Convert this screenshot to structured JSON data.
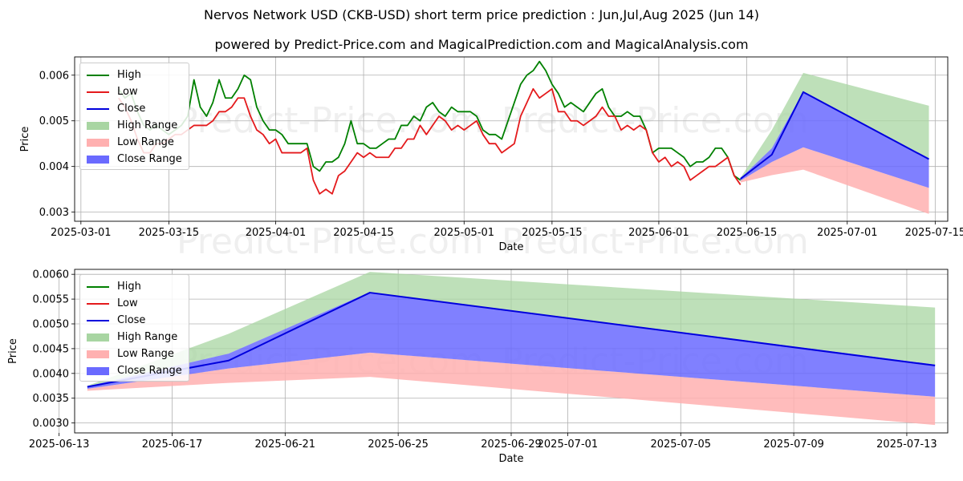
{
  "title": "Nervos Network USD (CKB-USD) short term price prediction : Jun,Jul,Aug 2025 (Jun 14)",
  "subtitle": "powered by Predict-Price.com and MagicalPrediction.com and MagicalAnalysis.com",
  "watermark": "Predict-Price.com",
  "colors": {
    "high": "#008000",
    "low": "#e41a1c",
    "close": "#0000dd",
    "high_range": "#a8d5a2",
    "low_range": "#ffb0b0",
    "close_range": "#6a6aff",
    "grid": "#b0b0b0"
  },
  "legend": [
    {
      "label": "High",
      "kind": "line",
      "color": "#008000"
    },
    {
      "label": "Low",
      "kind": "line",
      "color": "#e41a1c"
    },
    {
      "label": "Close",
      "kind": "line",
      "color": "#0000dd"
    },
    {
      "label": "High Range",
      "kind": "patch",
      "color": "#a8d5a2"
    },
    {
      "label": "Low Range",
      "kind": "patch",
      "color": "#ffb0b0"
    },
    {
      "label": "Close Range",
      "kind": "patch",
      "color": "#6a6aff"
    }
  ],
  "chart_data": [
    {
      "type": "line",
      "xlabel": "Date",
      "ylabel": "Price",
      "xlim": [
        "2025-02-28",
        "2025-07-17"
      ],
      "ylim": [
        0.0028,
        0.0064
      ],
      "xticks": [
        "2025-03-01",
        "2025-03-15",
        "2025-04-01",
        "2025-04-15",
        "2025-05-01",
        "2025-05-15",
        "2025-06-01",
        "2025-06-15",
        "2025-07-01",
        "2025-07-15"
      ],
      "yticks": [
        0.003,
        0.004,
        0.005,
        0.006
      ],
      "ytick_labels": [
        "0.003",
        "0.004",
        "0.005",
        "0.006"
      ],
      "grid": true,
      "legend_position": "upper left",
      "history": {
        "x": [
          "2025-03-07",
          "2025-03-08",
          "2025-03-09",
          "2025-03-10",
          "2025-03-11",
          "2025-03-12",
          "2025-03-13",
          "2025-03-14",
          "2025-03-15",
          "2025-03-16",
          "2025-03-17",
          "2025-03-18",
          "2025-03-19",
          "2025-03-20",
          "2025-03-21",
          "2025-03-22",
          "2025-03-23",
          "2025-03-24",
          "2025-03-25",
          "2025-03-26",
          "2025-03-27",
          "2025-03-28",
          "2025-03-29",
          "2025-03-30",
          "2025-03-31",
          "2025-04-01",
          "2025-04-02",
          "2025-04-03",
          "2025-04-04",
          "2025-04-05",
          "2025-04-06",
          "2025-04-07",
          "2025-04-08",
          "2025-04-09",
          "2025-04-10",
          "2025-04-11",
          "2025-04-12",
          "2025-04-13",
          "2025-04-14",
          "2025-04-15",
          "2025-04-16",
          "2025-04-17",
          "2025-04-18",
          "2025-04-19",
          "2025-04-20",
          "2025-04-21",
          "2025-04-22",
          "2025-04-23",
          "2025-04-24",
          "2025-04-25",
          "2025-04-26",
          "2025-04-27",
          "2025-04-28",
          "2025-04-29",
          "2025-04-30",
          "2025-05-01",
          "2025-05-02",
          "2025-05-03",
          "2025-05-04",
          "2025-05-05",
          "2025-05-06",
          "2025-05-07",
          "2025-05-08",
          "2025-05-09",
          "2025-05-10",
          "2025-05-11",
          "2025-05-12",
          "2025-05-13",
          "2025-05-14",
          "2025-05-15",
          "2025-05-16",
          "2025-05-17",
          "2025-05-18",
          "2025-05-19",
          "2025-05-20",
          "2025-05-21",
          "2025-05-22",
          "2025-05-23",
          "2025-05-24",
          "2025-05-25",
          "2025-05-26",
          "2025-05-27",
          "2025-05-28",
          "2025-05-29",
          "2025-05-30",
          "2025-05-31",
          "2025-06-01",
          "2025-06-02",
          "2025-06-03",
          "2025-06-04",
          "2025-06-05",
          "2025-06-06",
          "2025-06-07",
          "2025-06-08",
          "2025-06-09",
          "2025-06-10",
          "2025-06-11",
          "2025-06-12",
          "2025-06-13",
          "2025-06-14"
        ],
        "high": [
          0.0057,
          0.0055,
          0.0056,
          0.0052,
          0.0049,
          0.0048,
          0.0049,
          0.0048,
          0.0047,
          0.0048,
          0.0049,
          0.0051,
          0.0059,
          0.0053,
          0.0051,
          0.0054,
          0.0059,
          0.0055,
          0.0055,
          0.0057,
          0.006,
          0.0059,
          0.0053,
          0.005,
          0.0048,
          0.0048,
          0.0047,
          0.0045,
          0.0045,
          0.0045,
          0.0045,
          0.004,
          0.0039,
          0.0041,
          0.0041,
          0.0042,
          0.0045,
          0.005,
          0.0045,
          0.0045,
          0.0044,
          0.0044,
          0.0045,
          0.0046,
          0.0046,
          0.0049,
          0.0049,
          0.0051,
          0.005,
          0.0053,
          0.0054,
          0.0052,
          0.0051,
          0.0053,
          0.0052,
          0.0052,
          0.0052,
          0.0051,
          0.0048,
          0.0047,
          0.0047,
          0.0046,
          0.005,
          0.0054,
          0.0058,
          0.006,
          0.0061,
          0.0063,
          0.0061,
          0.0058,
          0.0056,
          0.0053,
          0.0054,
          0.0053,
          0.0052,
          0.0054,
          0.0056,
          0.0057,
          0.0053,
          0.0051,
          0.0051,
          0.0052,
          0.0051,
          0.0051,
          0.0048,
          0.0043,
          0.0044,
          0.0044,
          0.0044,
          0.0043,
          0.0042,
          0.004,
          0.0041,
          0.0041,
          0.0042,
          0.0044,
          0.0044,
          0.0042,
          0.0038,
          0.0037
        ],
        "low": [
          0.0055,
          0.0053,
          0.005,
          0.0046,
          0.0043,
          0.0043,
          0.0045,
          0.0045,
          0.0046,
          0.0047,
          0.0047,
          0.0048,
          0.0049,
          0.0049,
          0.0049,
          0.005,
          0.0052,
          0.0052,
          0.0053,
          0.0055,
          0.0055,
          0.0051,
          0.0048,
          0.0047,
          0.0045,
          0.0046,
          0.0043,
          0.0043,
          0.0043,
          0.0043,
          0.0044,
          0.0037,
          0.0034,
          0.0035,
          0.0034,
          0.0038,
          0.0039,
          0.0041,
          0.0043,
          0.0042,
          0.0043,
          0.0042,
          0.0042,
          0.0042,
          0.0044,
          0.0044,
          0.0046,
          0.0046,
          0.0049,
          0.0047,
          0.0049,
          0.0051,
          0.005,
          0.0048,
          0.0049,
          0.0048,
          0.0049,
          0.005,
          0.0047,
          0.0045,
          0.0045,
          0.0043,
          0.0044,
          0.0045,
          0.0051,
          0.0054,
          0.0057,
          0.0055,
          0.0056,
          0.0057,
          0.0052,
          0.0052,
          0.005,
          0.005,
          0.0049,
          0.005,
          0.0051,
          0.0053,
          0.0051,
          0.0051,
          0.0048,
          0.0049,
          0.0048,
          0.0049,
          0.0048,
          0.0043,
          0.0041,
          0.0042,
          0.004,
          0.0041,
          0.004,
          0.0037,
          0.0038,
          0.0039,
          0.004,
          0.004,
          0.0041,
          0.0042,
          0.0038,
          0.0036
        ]
      },
      "forecast": {
        "x": [
          "2025-06-14",
          "2025-06-19",
          "2025-06-24",
          "2025-07-14"
        ],
        "close": [
          0.00373,
          0.00426,
          0.00563,
          0.00416
        ],
        "high_range_upper": [
          0.00375,
          0.0048,
          0.00605,
          0.00533
        ],
        "close_range_upper": [
          0.00374,
          0.0044,
          0.00564,
          0.00418
        ],
        "close_range_lower": [
          0.00369,
          0.0041,
          0.00442,
          0.00353
        ],
        "low_range_lower": [
          0.00365,
          0.00381,
          0.00393,
          0.00296
        ]
      }
    },
    {
      "type": "area",
      "xlabel": "Date",
      "ylabel": "Price",
      "xlim": [
        "2025-06-13.55",
        "2025-07-14.45"
      ],
      "ylim": [
        0.0028,
        0.0061
      ],
      "xticks": [
        "2025-06-13",
        "2025-06-17",
        "2025-06-21",
        "2025-06-25",
        "2025-06-29",
        "2025-07-01",
        "2025-07-05",
        "2025-07-09",
        "2025-07-13"
      ],
      "yticks": [
        0.003,
        0.0035,
        0.004,
        0.0045,
        0.005,
        0.0055,
        0.006
      ],
      "ytick_labels": [
        "0.0030",
        "0.0035",
        "0.0040",
        "0.0045",
        "0.0050",
        "0.0055",
        "0.0060"
      ],
      "grid": true,
      "legend_position": "upper left"
    }
  ]
}
